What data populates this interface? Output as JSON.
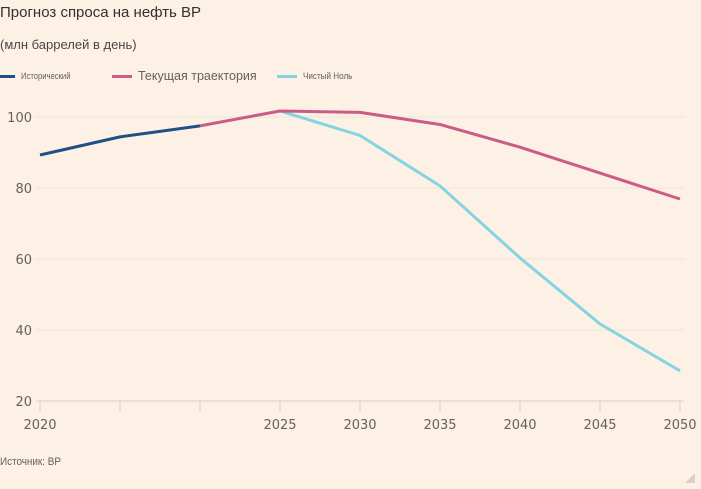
{
  "chart_data": {
    "type": "line",
    "title": "Прогноз спроса на нефть BP",
    "subtitle": "(млн баррелей в день)",
    "xlabel": "",
    "ylabel": "",
    "x_categories": [
      "2020",
      "",
      "",
      "2025",
      "2030",
      "2035",
      "2040",
      "2045",
      "2050"
    ],
    "ylim": [
      20,
      105
    ],
    "yticks": [
      20,
      40,
      60,
      80,
      100
    ],
    "grid": true,
    "legend_position": "top-left",
    "series": [
      {
        "name": "Исторический",
        "color": "#204f86",
        "points": [
          {
            "i": 0,
            "y": 89.3
          },
          {
            "i": 1,
            "y": 94.4
          },
          {
            "i": 2,
            "y": 97.5
          }
        ]
      },
      {
        "name": "Текущая траектория",
        "color": "#cc5c85",
        "points": [
          {
            "i": 2,
            "y": 97.5
          },
          {
            "i": 3,
            "y": 101.7
          },
          {
            "i": 4,
            "y": 101.3
          },
          {
            "i": 5,
            "y": 97.9
          },
          {
            "i": 6,
            "y": 91.5
          },
          {
            "i": 7,
            "y": 84.2
          },
          {
            "i": 8,
            "y": 76.9
          }
        ]
      },
      {
        "name": "Чистый Ноль",
        "color": "#86d4e2",
        "points": [
          {
            "i": 3,
            "y": 101.7
          },
          {
            "i": 4,
            "y": 94.8
          },
          {
            "i": 5,
            "y": 80.6
          },
          {
            "i": 6,
            "y": 60.3
          },
          {
            "i": 7,
            "y": 41.7
          },
          {
            "i": 8,
            "y": 28.5
          }
        ]
      }
    ]
  },
  "header": {
    "title": "Прогноз спроса на нефть BP",
    "subtitle": "(млн баррелей в день)"
  },
  "legend": [
    {
      "label": "Исторический",
      "color": "#204f86"
    },
    {
      "label": "Текущая траектория",
      "color": "#cc5c85"
    },
    {
      "label": "Чистый Ноль",
      "color": "#86d4e2"
    }
  ],
  "footer": {
    "source": "Источник: BP"
  }
}
